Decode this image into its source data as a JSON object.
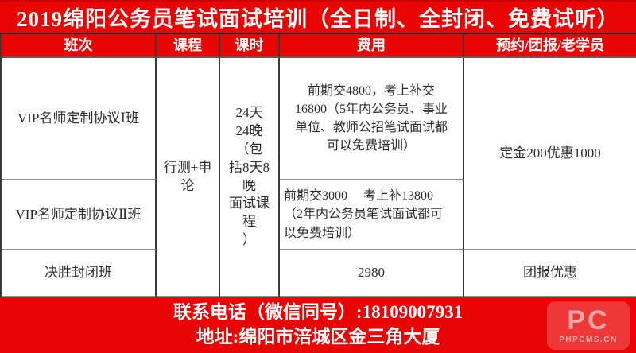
{
  "title": "2019绵阳公务员笔试面试培训（全日制、全封闭、免费试听）",
  "table": {
    "headers": [
      "班次",
      "课程",
      "课时",
      "费用",
      "预约/团报/老学员"
    ],
    "rows": {
      "class1": "VIP名师定制协议Ⅰ班",
      "class2": "VIP名师定制协议Ⅱ班",
      "class3": "决胜封闭班",
      "course": "行测+申\n论",
      "duration": "24天\n24晚（包\n括8天8晚\n面试课程\n）",
      "fee1": "前期交4800，考上补交\n16800（5年内公务员、事业\n单位、教师公招笔试面试都\n可以免费培训）",
      "fee2": "前期交3000　 考上补13800\n（2年内公务员笔试面试都可\n以免费培训）",
      "fee3": "2980",
      "promo12": "定金200优惠1000",
      "promo3": "团报优惠"
    }
  },
  "footer": {
    "contact": "联系电话（微信同号）:18109007931",
    "address": "地址:绵阳市涪城区金三角大厦"
  },
  "logo": {
    "mark": "PC",
    "caption": "PHPCMS.CN"
  },
  "colors": {
    "banner_red": "#ea0505",
    "border_dark": "#3b3b3b",
    "border_gray": "#8f8f8f"
  }
}
